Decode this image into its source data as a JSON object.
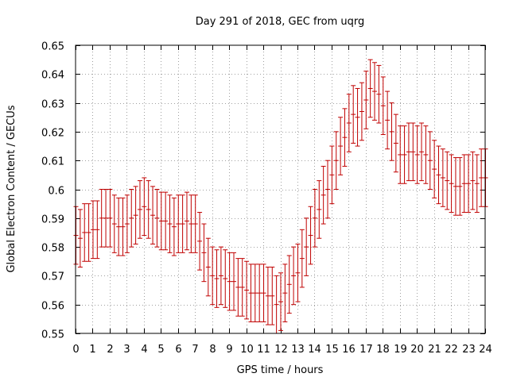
{
  "chart_data": {
    "type": "scatter",
    "title": "Day 291 of 2018, GEC from uqrg",
    "xlabel": "GPS time / hours",
    "ylabel": "Global Electron Content / GECUs",
    "xlim": [
      0,
      24
    ],
    "ylim": [
      0.55,
      0.65
    ],
    "x_ticks": [
      0,
      1,
      2,
      3,
      4,
      5,
      6,
      7,
      8,
      9,
      10,
      11,
      12,
      13,
      14,
      15,
      16,
      17,
      18,
      19,
      20,
      21,
      22,
      23,
      24
    ],
    "x_tick_labels": [
      "0",
      "1",
      "2",
      "3",
      "4",
      "5",
      "6",
      "7",
      "8",
      "9",
      "10",
      "11",
      "12",
      "13",
      "14",
      "15",
      "16",
      "17",
      "18",
      "19",
      "20",
      "21",
      "22",
      "23",
      "24"
    ],
    "y_ticks": [
      0.55,
      0.56,
      0.57,
      0.58,
      0.59,
      0.6,
      0.61,
      0.62,
      0.63,
      0.64,
      0.65
    ],
    "y_tick_labels": [
      "0.55",
      "0.56",
      "0.57",
      "0.58",
      "0.59",
      "0.6",
      "0.61",
      "0.62",
      "0.63",
      "0.64",
      "0.65"
    ],
    "grid": true,
    "color": "#c00000",
    "error": 0.01,
    "series": [
      {
        "x": [
          0.0,
          0.25,
          0.5,
          0.75,
          1.0,
          1.25,
          1.5,
          1.75,
          2.0,
          2.25,
          2.5,
          2.75,
          3.0,
          3.25,
          3.5,
          3.75,
          4.0,
          4.25,
          4.5,
          4.75,
          5.0,
          5.25,
          5.5,
          5.75,
          6.0,
          6.25,
          6.5,
          6.75,
          7.0,
          7.25,
          7.5,
          7.75,
          8.0,
          8.25,
          8.5,
          8.75,
          9.0,
          9.25,
          9.5,
          9.75,
          10.0,
          10.25,
          10.5,
          10.75,
          11.0,
          11.25,
          11.5,
          11.75,
          12.0,
          12.25,
          12.5,
          12.75,
          13.0,
          13.25,
          13.5,
          13.75,
          14.0,
          14.25,
          14.5,
          14.75,
          15.0,
          15.25,
          15.5,
          15.75,
          16.0,
          16.25,
          16.5,
          16.75,
          17.0,
          17.25,
          17.5,
          17.75,
          18.0,
          18.25,
          18.5,
          18.75,
          19.0,
          19.25,
          19.5,
          19.75,
          20.0,
          20.25,
          20.5,
          20.75,
          21.0,
          21.25,
          21.5,
          21.75,
          22.0,
          22.25,
          22.5,
          22.75,
          23.0,
          23.25,
          23.5,
          23.75,
          24.0
        ],
        "y": [
          0.584,
          0.583,
          0.585,
          0.585,
          0.586,
          0.586,
          0.59,
          0.59,
          0.59,
          0.588,
          0.587,
          0.587,
          0.588,
          0.59,
          0.591,
          0.593,
          0.594,
          0.593,
          0.591,
          0.59,
          0.589,
          0.589,
          0.588,
          0.587,
          0.588,
          0.588,
          0.589,
          0.588,
          0.588,
          0.582,
          0.578,
          0.573,
          0.57,
          0.569,
          0.57,
          0.569,
          0.568,
          0.568,
          0.566,
          0.566,
          0.565,
          0.564,
          0.564,
          0.564,
          0.564,
          0.563,
          0.563,
          0.56,
          0.561,
          0.564,
          0.567,
          0.57,
          0.571,
          0.576,
          0.58,
          0.584,
          0.59,
          0.593,
          0.598,
          0.6,
          0.605,
          0.61,
          0.615,
          0.618,
          0.623,
          0.626,
          0.625,
          0.627,
          0.631,
          0.635,
          0.634,
          0.633,
          0.629,
          0.624,
          0.62,
          0.616,
          0.612,
          0.612,
          0.613,
          0.613,
          0.612,
          0.613,
          0.612,
          0.61,
          0.607,
          0.605,
          0.604,
          0.603,
          0.602,
          0.601,
          0.601,
          0.602,
          0.602,
          0.603,
          0.602,
          0.604,
          0.604
        ]
      }
    ]
  }
}
